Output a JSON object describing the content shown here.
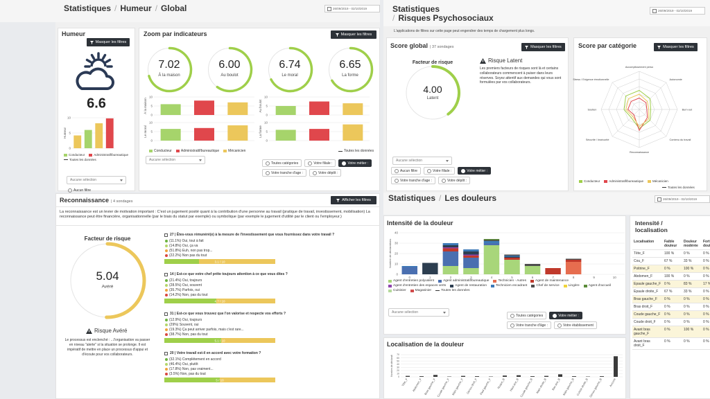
{
  "humeur_page": {
    "breadcrumb": [
      "Statistiques",
      "Humeur",
      "Global"
    ],
    "separator": "/",
    "date_range": "26/09/2019 - 02/10/2019",
    "humeur_panel": {
      "title": "Humeur",
      "button": "Masquer les filtres",
      "score": 6.6,
      "chart": {
        "axis_label": "Humeur",
        "ylim": [
          0,
          10
        ],
        "yticks": [
          0,
          5,
          10
        ],
        "values": [
          4.2,
          6,
          8.2,
          9.8
        ],
        "colors": [
          "#ecc75b",
          "#a6d46b",
          "#ecc75b",
          "#e0474c"
        ]
      },
      "legend": [
        {
          "name": "Conducteur",
          "color": "#a6d46b"
        },
        {
          "name": "Administratif/bureautique",
          "color": "#e0474c"
        },
        {
          "name": "Toutes les données",
          "color": "#333333"
        }
      ],
      "dropdown": "Aucune sélection",
      "radio": "Aucun filtre"
    },
    "zoom_panel": {
      "title": "Zoom par indicateurs",
      "button": "Masquer les filtres",
      "gauge_max": 10,
      "gauge_color": "#9fcf4a",
      "gauges": [
        {
          "value": "7.02",
          "label": "À la maison"
        },
        {
          "value": "6.00",
          "label": "Au boulot"
        },
        {
          "value": "6.74",
          "label": "Le moral"
        },
        {
          "value": "6.65",
          "label": "La forme"
        }
      ],
      "ylim": [
        0,
        10
      ],
      "yticks": [
        0,
        5,
        10
      ],
      "charts": [
        {
          "label": "À la maison",
          "values": [
            6,
            8,
            7
          ]
        },
        {
          "label": "Au boulot",
          "values": [
            5,
            7.5,
            6.5
          ]
        },
        {
          "label": "Le moral",
          "values": [
            6.5,
            7,
            8.5
          ]
        },
        {
          "label": "La forme",
          "values": [
            6,
            6.5,
            9
          ]
        }
      ],
      "series": [
        {
          "name": "Conducteur",
          "color": "#a6d46b"
        },
        {
          "name": "Administratif/bureautique",
          "color": "#e0474c"
        },
        {
          "name": "Mécanicien",
          "color": "#ecc75b"
        }
      ],
      "all_data": "Toutes les données",
      "dropdown": "Aucune sélection",
      "filters": [
        {
          "label": "Toutes catégories",
          "selected": false
        },
        {
          "label": "Votre filiale :",
          "selected": false
        },
        {
          "label": "Votre métier :",
          "selected": true
        },
        {
          "label": "Votre tranche d'age :",
          "selected": false
        },
        {
          "label": "Votre dépôt :",
          "selected": false
        }
      ]
    }
  },
  "risques_page": {
    "title": "Statistiques",
    "separator": "/",
    "subtitle": "Risques Psychosociaux",
    "date_range": "26/09/2019 - 02/10/2019",
    "note": "L'applications de filtres sur cette page peut engendrer des temps de chargement plus longs.",
    "score_panel": {
      "title": "Score global",
      "count": "| 37 sondages",
      "button": "Masquer les filtres",
      "gauge_title": "Facteur de risque",
      "value": "4.00",
      "level": "Latent",
      "gauge_max": 10,
      "gauge_color": "#9fcf4a",
      "risk_title": "Risque Latent",
      "risk_text": "Les premiers facteurs de risques sont là et certains collaborateurs commencent à puiser dans leurs réserves. Soyez attentif aux demandes qui vous sont formulées par vos collaborateurs.",
      "dropdown": "Aucune sélection",
      "filters": [
        {
          "label": "Aucun filtre",
          "selected": false
        },
        {
          "label": "Votre filiale :",
          "selected": false
        },
        {
          "label": "Votre métier :",
          "selected": true
        },
        {
          "label": "Votre tranche d'age :",
          "selected": false
        },
        {
          "label": "Votre dépôt :",
          "selected": false
        }
      ]
    },
    "category_panel": {
      "title": "Score par catégorie",
      "button": "Masquer les filtres",
      "axes": [
        "Accomplissement perso",
        "Autonomie",
        "Burn-out",
        "Contenu du travail",
        "Reconnaissance",
        "Sécurité / Insécurité",
        "Soutien",
        "Stress / Exigence émotionnelle"
      ],
      "rlim": [
        0,
        10
      ],
      "rticks": [
        2,
        4,
        6,
        8,
        10
      ],
      "series": [
        {
          "name": "Conducteur",
          "color": "#9fcf4a",
          "values": [
            5,
            4,
            3,
            4,
            5,
            3,
            4,
            5
          ]
        },
        {
          "name": "Administratif/bureautique",
          "color": "#e0474c",
          "values": [
            3,
            2.5,
            2,
            3,
            5.5,
            2,
            3,
            3
          ]
        },
        {
          "name": "Mécanicien",
          "color": "#ecc75b",
          "values": [
            4,
            3,
            2.5,
            3.5,
            4.5,
            2.5,
            3.5,
            4
          ]
        }
      ],
      "all_data": "Toutes les données"
    }
  },
  "reconnaissance_page": {
    "title": "Reconnaissance",
    "count": "| 4 sondages",
    "button": "Afficher les filtres",
    "intro": "La reconnaissance est un levier de motivation important : C'est un jugement posité quant à la contribution d'une personne au travail (pratique de travail, investissement, mobilisation) La reconnaissance peut être financière, organisationnelle (par le biais du statut par exemple) ou symbolique (par exemple le jugement d'utilité par le client ou l'employeur.)",
    "gauge_title": "Facteur de risque",
    "value": "5.04",
    "level": "Avéré",
    "gauge_max": 10,
    "gauge_color": "#ecc75b",
    "risk_title": "Risque Avéré",
    "risk_text": "Le processus est enclenché : ...l'organisation va passer en niveau \"alerte\" si la situation se prolonge. Il est impératif de mettre en place un processus d'appui et d'écoute pour vos collaborateurs.",
    "answer_colors": [
      "#6cb33f",
      "#b5d66a",
      "#f0a23c",
      "#d9463f"
    ],
    "score_max": 10,
    "questions": [
      {
        "title": "27 | Êtes-vous rémunéré(e) à la mesure de l'investissement que vous fournissez dans votre travail ?",
        "answers": [
          "(11.1%) Oui, tout à fait",
          "(14.8%) Oui, ça va",
          "(51.8%) Euh, non pas trop...",
          "(22.2%) Non pas du tout"
        ],
        "score": {
          "value": 3.1,
          "label": "3.1 / 10"
        }
      },
      {
        "title": "14 | Est-ce que votre chef prête toujours attention à ce que vous dites ?",
        "answers": [
          "(21.4%) Oui, toujours",
          "(28.5%) Oui, souvent",
          "(35.7%) Parfois, oui",
          "(14.2%) Non, pas du tout"
        ],
        "score": {
          "value": 4.7,
          "label": "4.7 / 10"
        }
      },
      {
        "title": "31 | Est-ce que vous trouvez que l'on valorise et respecte vos efforts ?",
        "answers": [
          "(12.9%) Oui, toujours",
          "(29%) Souvent, oui",
          "(19.3%) Ça peut arriver parfois, mais c'est rare...",
          "(38.7%) Non, pas du tout"
        ],
        "score": {
          "value": 5.1,
          "label": "5.1 / 10"
        }
      },
      {
        "title": "20 | Votre travail est-il en accord avec votre formation ?",
        "answers": [
          "(32.1%) Complètement en accord",
          "(46.4%) Oui, plutôt",
          "(17.8%) Non, pas vraiment...",
          "(3.5%) Non, pas du tout"
        ],
        "score": {
          "value": 5,
          "label": "5 / 10"
        }
      }
    ]
  },
  "douleurs_page": {
    "breadcrumb": [
      "Statistiques",
      "Les douleurs"
    ],
    "separator": "/",
    "date_range": "26/09/2019 - 02/10/2019",
    "intensity": {
      "title": "Intensité de la douleur",
      "y_label": "Nombre de déclarations",
      "categories": [
        "0",
        "1",
        "2",
        "3",
        "4",
        "5",
        "6",
        "7",
        "8",
        "9",
        "10"
      ],
      "ylim": [
        0,
        40
      ],
      "yticks": [
        0,
        10,
        20,
        30,
        40
      ],
      "series": [
        {
          "name": "Agent d'entretien polyvalent",
          "color": "#a8d67a",
          "values": [
            0,
            0,
            8,
            6,
            28,
            14,
            8,
            0,
            0,
            0,
            0
          ]
        },
        {
          "name": "Agent administratif/bureautique",
          "color": "#4a6fb0",
          "values": [
            7,
            0,
            14,
            10,
            2,
            0,
            0,
            0,
            0,
            0,
            0
          ]
        },
        {
          "name": "Technicien - Autres",
          "color": "#e66d4f",
          "values": [
            0,
            0,
            0,
            0,
            0,
            0,
            0,
            0,
            12,
            0,
            0
          ]
        },
        {
          "name": "Agent de maintenance",
          "color": "#c0392b",
          "values": [
            0,
            0,
            3,
            2,
            0,
            2,
            0,
            6,
            2,
            0,
            0
          ]
        },
        {
          "name": "Agent d'entretien des espaces verts",
          "color": "#8e44ad",
          "values": [
            0,
            0,
            1,
            1,
            0,
            0,
            0,
            0,
            0,
            0,
            0
          ]
        },
        {
          "name": "Agent de restauration",
          "color": "#2c3e50",
          "values": [
            0,
            11,
            2,
            3,
            0,
            1,
            0,
            0,
            0,
            0,
            0
          ]
        },
        {
          "name": "Technicien encadrant",
          "color": "#3d7ab8",
          "values": [
            1,
            0,
            2,
            2,
            2,
            1,
            0,
            0,
            0,
            0,
            0
          ]
        },
        {
          "name": "Chef de service",
          "color": "#4d4d4d",
          "values": [
            0,
            0,
            0,
            0,
            1,
            1,
            2,
            0,
            1,
            0,
            0
          ]
        },
        {
          "name": "Lingère",
          "color": "#f0d43a",
          "values": [
            0,
            0,
            0,
            0,
            0,
            0,
            0,
            0,
            0,
            0,
            0
          ]
        },
        {
          "name": "Agent d'accueil",
          "color": "#5b8c3a",
          "values": [
            0,
            0,
            0,
            0,
            1,
            0,
            0,
            0,
            0,
            0,
            0
          ]
        },
        {
          "name": "Cuisinier",
          "color": "#b5d99c",
          "values": [
            0,
            0,
            0,
            0,
            0,
            0,
            0,
            0,
            0,
            0,
            0
          ]
        },
        {
          "name": "Magasinier",
          "color": "#d14b4b",
          "values": [
            0,
            0,
            0,
            0,
            0,
            0,
            0,
            0,
            0,
            0,
            0
          ]
        }
      ],
      "all_data": "Toutes les données",
      "dropdown": "Aucune sélection",
      "filters": [
        {
          "label": "Toutes catégories",
          "selected": false
        },
        {
          "label": "Votre métier :",
          "selected": true
        },
        {
          "label": "Votre tranche d'âge :",
          "selected": false
        },
        {
          "label": "Votre établissement",
          "selected": false
        }
      ]
    },
    "location": {
      "title": "Localisation de la douleur",
      "y_label": "Nombre de déclarati",
      "color": "#3a3a3a",
      "categories": [
        "Tête_F",
        "Abdomen_F",
        "Bras gauche_F",
        "Coude gauche_F",
        "Main gauche_F",
        "Genou droit_F",
        "Pied gauche_F",
        "Nuque_B",
        "Haut dos_B",
        "Coude gauche_B",
        "Main droite_B",
        "Bas dos_B",
        "Main gauche_B",
        "Cuisse droite_B",
        "Genou gauche_B",
        "Aucune"
      ],
      "values": [
        3,
        2,
        6,
        1,
        3,
        2,
        1,
        4,
        5,
        2,
        3,
        8,
        2,
        1,
        2,
        65
      ],
      "ylim": [
        0,
        70
      ],
      "yticks": [
        0,
        10,
        20,
        30,
        40,
        50,
        60,
        70
      ]
    },
    "table": {
      "title": "Intensité / localisation",
      "headers": [
        "Localisation",
        "Faible douleur",
        "Douleur modérée",
        "Forte douleur"
      ],
      "rows": [
        [
          "Tête_F",
          "100 %",
          "0 %",
          "0 %"
        ],
        [
          "Cou_F",
          "67 %",
          "33 %",
          "0 %"
        ],
        [
          "Poitrine_F",
          "0 %",
          "100 %",
          "0 %"
        ],
        [
          "Abdomen_F",
          "100 %",
          "0 %",
          "0 %"
        ],
        [
          "Epaule gauche_F",
          "0 %",
          "83 %",
          "17 %"
        ],
        [
          "Epaule droite_F",
          "67 %",
          "33 %",
          "0 %"
        ],
        [
          "Bras gauche_F",
          "0 %",
          "0 %",
          "0 %"
        ],
        [
          "Bras droit_F",
          "0 %",
          "0 %",
          "0 %"
        ],
        [
          "Coude gauche_F",
          "0 %",
          "0 %",
          "0 %"
        ],
        [
          "Coude droit_F",
          "0 %",
          "0 %",
          "0 %"
        ],
        [
          "Avant bras gauche_F",
          "0 %",
          "100 %",
          "0 %"
        ],
        [
          "Avant bras droit_F",
          "0 %",
          "0 %",
          "0 %"
        ]
      ]
    }
  }
}
